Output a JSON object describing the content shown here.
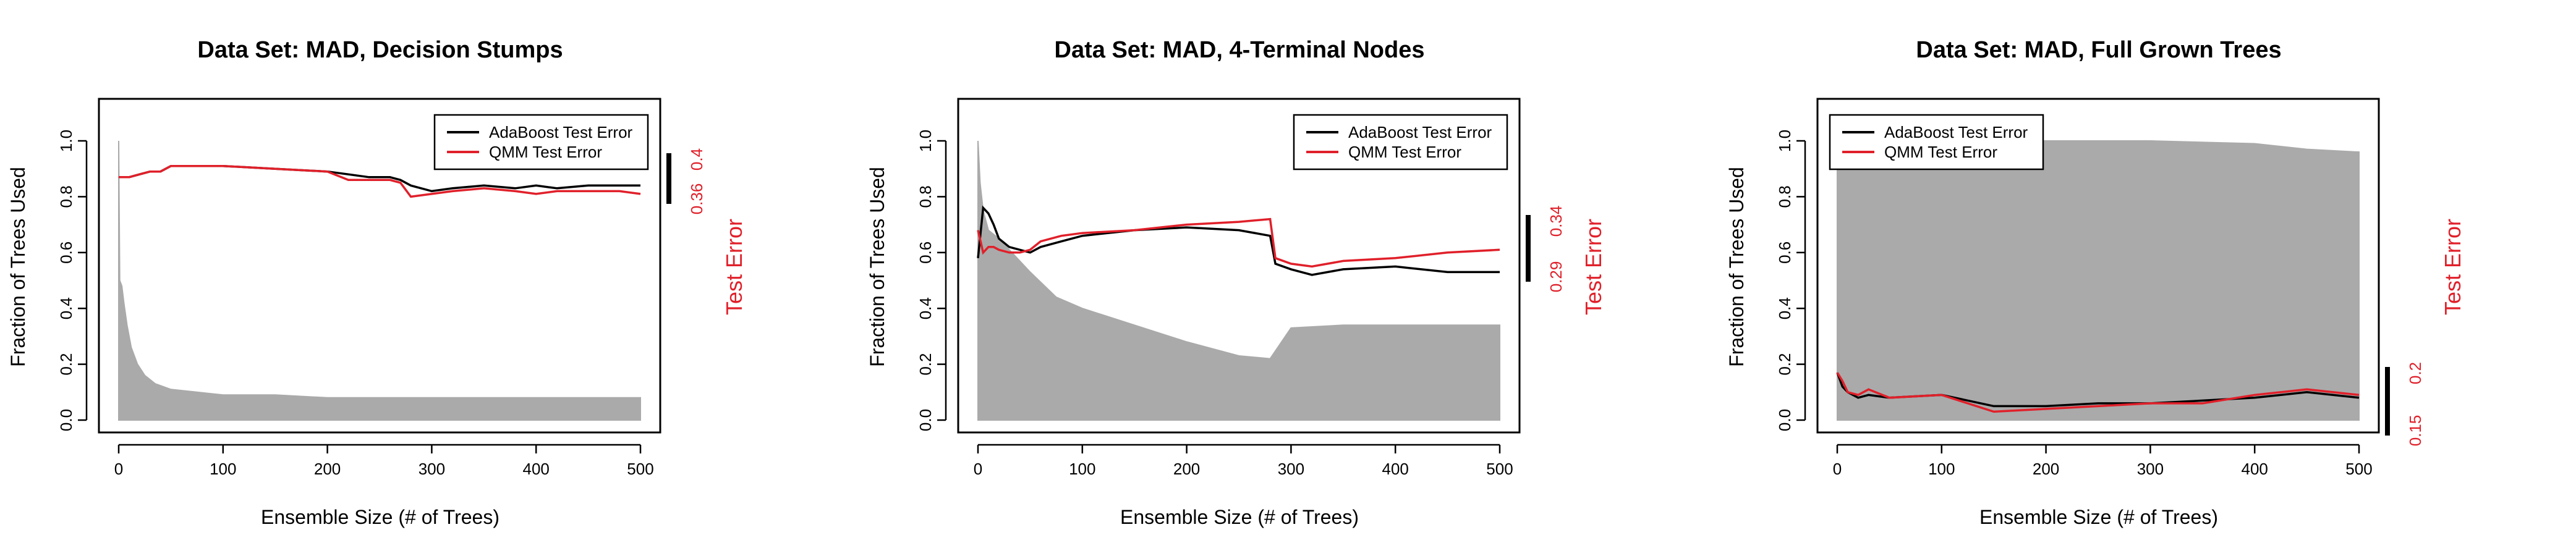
{
  "colors": {
    "adaboost": "#000000",
    "qmm": "#e0202a",
    "fraction": "#aaaaaa",
    "axis": "#000000"
  },
  "chart_data": [
    {
      "type": "line",
      "title": "Data Set: MAD, Decision Stumps",
      "xlabel": "Ensemble Size (# of Trees)",
      "ylabel": "Fraction of Trees Used",
      "y2label": "Test Error",
      "xlim": [
        0,
        500
      ],
      "ylim": [
        0,
        1.0
      ],
      "xticks": [
        "0",
        "100",
        "200",
        "300",
        "400",
        "500"
      ],
      "yticks": [
        "0.0",
        "0.2",
        "0.4",
        "0.6",
        "0.8",
        "1.0"
      ],
      "y2ticks": [
        "0.36",
        "0.4"
      ],
      "legend_position": "top-right",
      "series": [
        {
          "name": "AdaBoost Test Error",
          "x": [
            0,
            10,
            20,
            30,
            40,
            50,
            100,
            150,
            200,
            220,
            240,
            260,
            270,
            280,
            300,
            320,
            350,
            380,
            400,
            420,
            450,
            480,
            500
          ],
          "y": [
            0.87,
            0.87,
            0.88,
            0.89,
            0.89,
            0.91,
            0.91,
            0.9,
            0.89,
            0.88,
            0.87,
            0.87,
            0.86,
            0.84,
            0.82,
            0.83,
            0.84,
            0.83,
            0.84,
            0.83,
            0.84,
            0.84,
            0.84
          ]
        },
        {
          "name": "QMM Test Error",
          "x": [
            0,
            10,
            20,
            30,
            40,
            50,
            100,
            150,
            200,
            220,
            240,
            260,
            270,
            280,
            300,
            320,
            350,
            380,
            400,
            420,
            450,
            480,
            500
          ],
          "y": [
            0.87,
            0.87,
            0.88,
            0.89,
            0.89,
            0.91,
            0.91,
            0.9,
            0.89,
            0.86,
            0.86,
            0.86,
            0.85,
            0.8,
            0.81,
            0.82,
            0.83,
            0.82,
            0.81,
            0.82,
            0.82,
            0.82,
            0.81
          ]
        },
        {
          "name": "Fraction of Trees Used",
          "x": [
            0,
            1,
            3,
            5,
            8,
            12,
            18,
            25,
            35,
            50,
            75,
            100,
            150,
            200,
            300,
            400,
            500
          ],
          "y": [
            1.0,
            0.5,
            0.48,
            0.42,
            0.34,
            0.26,
            0.2,
            0.16,
            0.13,
            0.11,
            0.1,
            0.09,
            0.09,
            0.08,
            0.08,
            0.08,
            0.08
          ]
        }
      ]
    },
    {
      "type": "line",
      "title": "Data Set: MAD, 4-Terminal Nodes",
      "xlabel": "Ensemble Size (# of Trees)",
      "ylabel": "Fraction of Trees Used",
      "y2label": "Test Error",
      "xlim": [
        0,
        500
      ],
      "ylim": [
        0,
        1.0
      ],
      "xticks": [
        "0",
        "100",
        "200",
        "300",
        "400",
        "500"
      ],
      "yticks": [
        "0.0",
        "0.2",
        "0.4",
        "0.6",
        "0.8",
        "1.0"
      ],
      "y2ticks": [
        "0.29",
        "0.34"
      ],
      "legend_position": "top-right",
      "series": [
        {
          "name": "AdaBoost Test Error",
          "x": [
            0,
            5,
            10,
            15,
            20,
            30,
            40,
            50,
            60,
            80,
            100,
            150,
            200,
            250,
            280,
            285,
            300,
            320,
            350,
            400,
            450,
            500
          ],
          "y": [
            0.58,
            0.76,
            0.74,
            0.7,
            0.65,
            0.62,
            0.61,
            0.6,
            0.62,
            0.64,
            0.66,
            0.68,
            0.69,
            0.68,
            0.66,
            0.56,
            0.54,
            0.52,
            0.54,
            0.55,
            0.53,
            0.53
          ]
        },
        {
          "name": "QMM Test Error",
          "x": [
            0,
            5,
            10,
            15,
            20,
            30,
            40,
            50,
            60,
            80,
            100,
            150,
            200,
            250,
            280,
            285,
            300,
            320,
            350,
            400,
            450,
            500
          ],
          "y": [
            0.68,
            0.6,
            0.62,
            0.62,
            0.61,
            0.6,
            0.6,
            0.61,
            0.64,
            0.66,
            0.67,
            0.68,
            0.7,
            0.71,
            0.72,
            0.58,
            0.56,
            0.55,
            0.57,
            0.58,
            0.6,
            0.61
          ]
        },
        {
          "name": "Fraction of Trees Used",
          "x": [
            0,
            2,
            5,
            10,
            20,
            30,
            50,
            75,
            100,
            150,
            200,
            250,
            280,
            300,
            350,
            400,
            450,
            500
          ],
          "y": [
            1.0,
            0.85,
            0.75,
            0.68,
            0.65,
            0.61,
            0.53,
            0.44,
            0.4,
            0.34,
            0.28,
            0.23,
            0.22,
            0.33,
            0.34,
            0.34,
            0.34,
            0.34
          ]
        }
      ]
    },
    {
      "type": "line",
      "title": "Data Set: MAD, Full Grown Trees",
      "xlabel": "Ensemble Size (# of Trees)",
      "ylabel": "Fraction of Trees Used",
      "y2label": "Test Error",
      "xlim": [
        0,
        500
      ],
      "ylim": [
        0,
        1.0
      ],
      "xticks": [
        "0",
        "100",
        "200",
        "300",
        "400",
        "500"
      ],
      "yticks": [
        "0.0",
        "0.2",
        "0.4",
        "0.6",
        "0.8",
        "1.0"
      ],
      "y2ticks": [
        "0.15",
        "0.2"
      ],
      "legend_position": "top-left",
      "series": [
        {
          "name": "AdaBoost Test Error",
          "x": [
            0,
            5,
            10,
            20,
            30,
            50,
            100,
            150,
            200,
            250,
            300,
            350,
            400,
            450,
            500
          ],
          "y": [
            0.17,
            0.12,
            0.1,
            0.08,
            0.09,
            0.08,
            0.09,
            0.05,
            0.05,
            0.06,
            0.06,
            0.07,
            0.08,
            0.1,
            0.08
          ]
        },
        {
          "name": "QMM Test Error",
          "x": [
            0,
            5,
            10,
            20,
            30,
            50,
            100,
            150,
            200,
            250,
            300,
            350,
            400,
            450,
            500
          ],
          "y": [
            0.17,
            0.14,
            0.1,
            0.09,
            0.11,
            0.08,
            0.09,
            0.03,
            0.04,
            0.05,
            0.06,
            0.06,
            0.09,
            0.11,
            0.09
          ]
        },
        {
          "name": "Fraction of Trees Used",
          "x": [
            0,
            100,
            200,
            250,
            300,
            400,
            450,
            500
          ],
          "y": [
            1.0,
            1.0,
            1.0,
            1.0,
            1.0,
            0.99,
            0.97,
            0.96
          ]
        }
      ]
    }
  ]
}
